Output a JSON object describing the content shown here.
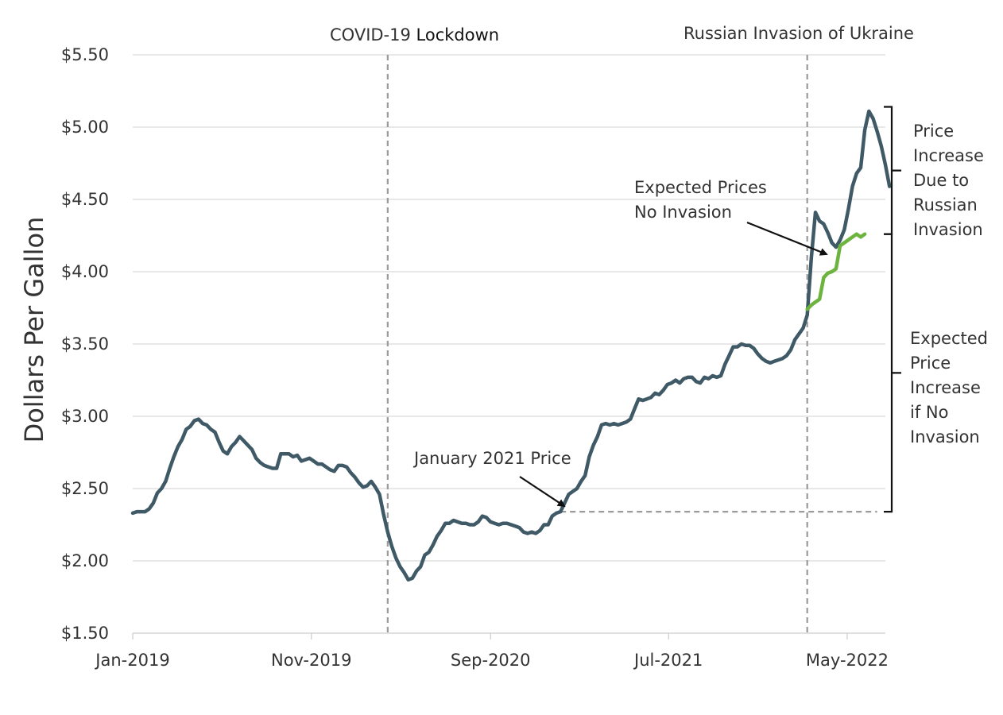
{
  "chart_data": {
    "type": "line",
    "ylabel": "Dollars Per Gallon",
    "xlabel": "",
    "title": "",
    "x_ticks": [
      "Jan-2019",
      "Nov-2019",
      "Sep-2020",
      "Jul-2021",
      "May-2022"
    ],
    "y_ticks": [
      "$1.50",
      "$2.00",
      "$2.50",
      "$3.00",
      "$3.50",
      "$4.00",
      "$4.50",
      "$5.00",
      "$5.50"
    ],
    "ylim": [
      1.5,
      5.5
    ],
    "xlim": [
      "2019-01-07",
      "2022-07-11"
    ],
    "grid": "horizontal",
    "series": [
      {
        "name": "",
        "color": "#3f5a66",
        "points": [
          [
            "2019-01-07",
            2.33
          ],
          [
            "2019-01-14",
            2.34
          ],
          [
            "2019-01-21",
            2.34
          ],
          [
            "2019-01-28",
            2.34
          ],
          [
            "2019-02-04",
            2.36
          ],
          [
            "2019-02-11",
            2.4
          ],
          [
            "2019-02-18",
            2.47
          ],
          [
            "2019-02-25",
            2.5
          ],
          [
            "2019-03-04",
            2.55
          ],
          [
            "2019-03-11",
            2.64
          ],
          [
            "2019-03-18",
            2.72
          ],
          [
            "2019-03-25",
            2.79
          ],
          [
            "2019-04-01",
            2.84
          ],
          [
            "2019-04-08",
            2.91
          ],
          [
            "2019-04-15",
            2.93
          ],
          [
            "2019-04-22",
            2.97
          ],
          [
            "2019-04-29",
            2.98
          ],
          [
            "2019-05-06",
            2.95
          ],
          [
            "2019-05-13",
            2.94
          ],
          [
            "2019-05-20",
            2.91
          ],
          [
            "2019-05-27",
            2.89
          ],
          [
            "2019-06-03",
            2.82
          ],
          [
            "2019-06-10",
            2.76
          ],
          [
            "2019-06-17",
            2.74
          ],
          [
            "2019-06-24",
            2.79
          ],
          [
            "2019-07-01",
            2.82
          ],
          [
            "2019-07-08",
            2.86
          ],
          [
            "2019-07-15",
            2.83
          ],
          [
            "2019-07-22",
            2.8
          ],
          [
            "2019-07-29",
            2.77
          ],
          [
            "2019-08-05",
            2.71
          ],
          [
            "2019-08-12",
            2.68
          ],
          [
            "2019-08-19",
            2.66
          ],
          [
            "2019-08-26",
            2.65
          ],
          [
            "2019-09-02",
            2.64
          ],
          [
            "2019-09-09",
            2.64
          ],
          [
            "2019-09-16",
            2.74
          ],
          [
            "2019-09-23",
            2.74
          ],
          [
            "2019-09-30",
            2.74
          ],
          [
            "2019-10-07",
            2.72
          ],
          [
            "2019-10-14",
            2.73
          ],
          [
            "2019-10-21",
            2.69
          ],
          [
            "2019-10-28",
            2.7
          ],
          [
            "2019-11-04",
            2.71
          ],
          [
            "2019-11-11",
            2.69
          ],
          [
            "2019-11-18",
            2.67
          ],
          [
            "2019-11-25",
            2.67
          ],
          [
            "2019-12-02",
            2.65
          ],
          [
            "2019-12-09",
            2.63
          ],
          [
            "2019-12-16",
            2.62
          ],
          [
            "2019-12-23",
            2.66
          ],
          [
            "2019-12-30",
            2.66
          ],
          [
            "2020-01-06",
            2.65
          ],
          [
            "2020-01-13",
            2.61
          ],
          [
            "2020-01-20",
            2.58
          ],
          [
            "2020-01-27",
            2.54
          ],
          [
            "2020-02-03",
            2.51
          ],
          [
            "2020-02-10",
            2.52
          ],
          [
            "2020-02-17",
            2.55
          ],
          [
            "2020-02-24",
            2.51
          ],
          [
            "2020-03-02",
            2.46
          ],
          [
            "2020-03-09",
            2.32
          ],
          [
            "2020-03-16",
            2.2
          ],
          [
            "2020-03-23",
            2.1
          ],
          [
            "2020-03-30",
            2.02
          ],
          [
            "2020-04-06",
            1.96
          ],
          [
            "2020-04-13",
            1.92
          ],
          [
            "2020-04-20",
            1.87
          ],
          [
            "2020-04-27",
            1.88
          ],
          [
            "2020-05-04",
            1.93
          ],
          [
            "2020-05-11",
            1.96
          ],
          [
            "2020-05-18",
            2.04
          ],
          [
            "2020-05-25",
            2.06
          ],
          [
            "2020-06-01",
            2.11
          ],
          [
            "2020-06-08",
            2.17
          ],
          [
            "2020-06-15",
            2.21
          ],
          [
            "2020-06-22",
            2.26
          ],
          [
            "2020-06-29",
            2.26
          ],
          [
            "2020-07-06",
            2.28
          ],
          [
            "2020-07-13",
            2.27
          ],
          [
            "2020-07-20",
            2.26
          ],
          [
            "2020-07-27",
            2.26
          ],
          [
            "2020-08-03",
            2.25
          ],
          [
            "2020-08-10",
            2.25
          ],
          [
            "2020-08-17",
            2.27
          ],
          [
            "2020-08-24",
            2.31
          ],
          [
            "2020-08-31",
            2.3
          ],
          [
            "2020-09-07",
            2.27
          ],
          [
            "2020-09-14",
            2.26
          ],
          [
            "2020-09-21",
            2.25
          ],
          [
            "2020-09-28",
            2.26
          ],
          [
            "2020-10-05",
            2.26
          ],
          [
            "2020-10-12",
            2.25
          ],
          [
            "2020-10-19",
            2.24
          ],
          [
            "2020-10-26",
            2.23
          ],
          [
            "2020-11-02",
            2.2
          ],
          [
            "2020-11-09",
            2.19
          ],
          [
            "2020-11-16",
            2.2
          ],
          [
            "2020-11-23",
            2.19
          ],
          [
            "2020-11-30",
            2.21
          ],
          [
            "2020-12-07",
            2.25
          ],
          [
            "2020-12-14",
            2.25
          ],
          [
            "2020-12-21",
            2.31
          ],
          [
            "2020-12-28",
            2.33
          ],
          [
            "2021-01-04",
            2.34
          ],
          [
            "2021-01-11",
            2.4
          ],
          [
            "2021-01-18",
            2.46
          ],
          [
            "2021-01-25",
            2.48
          ],
          [
            "2021-02-01",
            2.5
          ],
          [
            "2021-02-08",
            2.55
          ],
          [
            "2021-02-15",
            2.59
          ],
          [
            "2021-02-22",
            2.72
          ],
          [
            "2021-03-01",
            2.8
          ],
          [
            "2021-03-08",
            2.86
          ],
          [
            "2021-03-15",
            2.94
          ],
          [
            "2021-03-22",
            2.95
          ],
          [
            "2021-03-29",
            2.94
          ],
          [
            "2021-04-05",
            2.95
          ],
          [
            "2021-04-12",
            2.94
          ],
          [
            "2021-04-19",
            2.95
          ],
          [
            "2021-04-26",
            2.96
          ],
          [
            "2021-05-03",
            2.98
          ],
          [
            "2021-05-10",
            3.05
          ],
          [
            "2021-05-17",
            3.12
          ],
          [
            "2021-05-24",
            3.11
          ],
          [
            "2021-05-31",
            3.12
          ],
          [
            "2021-06-07",
            3.13
          ],
          [
            "2021-06-14",
            3.16
          ],
          [
            "2021-06-21",
            3.15
          ],
          [
            "2021-06-28",
            3.18
          ],
          [
            "2021-07-05",
            3.22
          ],
          [
            "2021-07-12",
            3.23
          ],
          [
            "2021-07-19",
            3.25
          ],
          [
            "2021-07-26",
            3.23
          ],
          [
            "2021-08-02",
            3.26
          ],
          [
            "2021-08-09",
            3.27
          ],
          [
            "2021-08-16",
            3.27
          ],
          [
            "2021-08-23",
            3.24
          ],
          [
            "2021-08-30",
            3.23
          ],
          [
            "2021-09-06",
            3.27
          ],
          [
            "2021-09-13",
            3.26
          ],
          [
            "2021-09-20",
            3.28
          ],
          [
            "2021-09-27",
            3.27
          ],
          [
            "2021-10-04",
            3.28
          ],
          [
            "2021-10-11",
            3.36
          ],
          [
            "2021-10-18",
            3.42
          ],
          [
            "2021-10-25",
            3.48
          ],
          [
            "2021-11-01",
            3.48
          ],
          [
            "2021-11-08",
            3.5
          ],
          [
            "2021-11-15",
            3.49
          ],
          [
            "2021-11-22",
            3.49
          ],
          [
            "2021-11-29",
            3.47
          ],
          [
            "2021-12-06",
            3.43
          ],
          [
            "2021-12-13",
            3.4
          ],
          [
            "2021-12-20",
            3.38
          ],
          [
            "2021-12-27",
            3.37
          ],
          [
            "2022-01-03",
            3.38
          ],
          [
            "2022-01-10",
            3.39
          ],
          [
            "2022-01-17",
            3.4
          ],
          [
            "2022-01-24",
            3.42
          ],
          [
            "2022-01-31",
            3.46
          ],
          [
            "2022-02-07",
            3.53
          ],
          [
            "2022-02-14",
            3.57
          ],
          [
            "2022-02-21",
            3.61
          ],
          [
            "2022-02-28",
            3.7
          ],
          [
            "2022-03-07",
            4.1
          ],
          [
            "2022-03-14",
            4.41
          ],
          [
            "2022-03-21",
            4.35
          ],
          [
            "2022-03-28",
            4.33
          ],
          [
            "2022-04-04",
            4.27
          ],
          [
            "2022-04-11",
            4.2
          ],
          [
            "2022-04-18",
            4.17
          ],
          [
            "2022-04-25",
            4.22
          ],
          [
            "2022-05-02",
            4.29
          ],
          [
            "2022-05-09",
            4.43
          ],
          [
            "2022-05-16",
            4.59
          ],
          [
            "2022-05-23",
            4.68
          ],
          [
            "2022-05-30",
            4.72
          ],
          [
            "2022-06-06",
            4.98
          ],
          [
            "2022-06-13",
            5.11
          ],
          [
            "2022-06-20",
            5.06
          ],
          [
            "2022-06-27",
            4.97
          ],
          [
            "2022-07-04",
            4.87
          ],
          [
            "2022-07-11",
            4.74
          ],
          [
            "2022-07-18",
            4.59
          ]
        ]
      },
      {
        "name": "",
        "color": "#6db33f",
        "points": [
          [
            "2022-02-28",
            3.74
          ],
          [
            "2022-03-07",
            3.77
          ],
          [
            "2022-03-14",
            3.79
          ],
          [
            "2022-03-21",
            3.81
          ],
          [
            "2022-03-28",
            3.96
          ],
          [
            "2022-04-04",
            3.99
          ],
          [
            "2022-04-11",
            4.0
          ],
          [
            "2022-04-18",
            4.02
          ],
          [
            "2022-04-25",
            4.18
          ],
          [
            "2022-05-02",
            4.2
          ],
          [
            "2022-05-09",
            4.22
          ],
          [
            "2022-05-16",
            4.24
          ],
          [
            "2022-05-23",
            4.26
          ],
          [
            "2022-05-30",
            4.24
          ],
          [
            "2022-06-06",
            4.26
          ]
        ]
      }
    ],
    "reference_lines": [
      {
        "type": "vertical",
        "x": "2020-03-16"
      },
      {
        "type": "vertical",
        "x": "2022-02-28"
      },
      {
        "type": "horizontal",
        "y": 2.34,
        "from": "2021-01-04",
        "to": "2022-06-27"
      }
    ],
    "annotations": {
      "covid_prefix": "COVID-19",
      "covid_suffix": "Lockdown",
      "russia": "Russian Invasion of Ukraine",
      "jan2021": "January 2021 Price",
      "expected_1": "Expected Prices",
      "expected_2": "No Invasion",
      "increase_lines": [
        "Price",
        "Increase",
        "Due to",
        "Russian",
        "Invasion"
      ],
      "noinvasion_lines": [
        "Expected",
        "Price",
        "Increase",
        "if No",
        "Invasion"
      ]
    },
    "brackets": [
      {
        "from": 4.26,
        "to": 5.14
      },
      {
        "from": 2.34,
        "to": 4.26
      }
    ]
  }
}
